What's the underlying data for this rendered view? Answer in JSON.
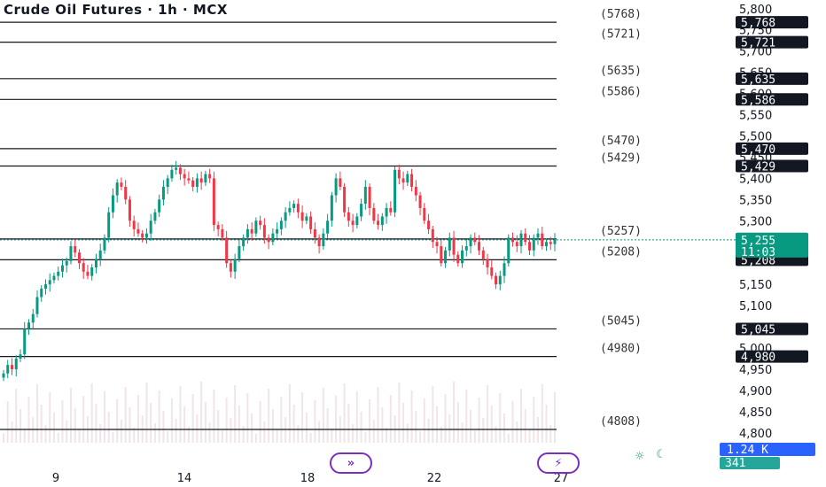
{
  "header": {
    "title": "Crude Oil Futures · 1h · MCX"
  },
  "price_axis": {
    "ticks": [
      "5,800",
      "5,750",
      "5,700",
      "5,650",
      "5,600",
      "5,550",
      "5,500",
      "5,450",
      "5,400",
      "5,350",
      "5,300",
      "5,150",
      "5,100",
      "5,000",
      "4,950",
      "4,900",
      "4,850",
      "4,800"
    ]
  },
  "time_axis": {
    "ticks": [
      "9",
      "14",
      "18",
      "22",
      "27"
    ]
  },
  "levels": [
    {
      "label": "(5768)",
      "tag": "5,768",
      "value": 5768
    },
    {
      "label": "(5721)",
      "tag": "5,721",
      "value": 5721
    },
    {
      "label": "(5635)",
      "tag": "5,635",
      "value": 5635
    },
    {
      "label": "(5586)",
      "tag": "5,586",
      "value": 5586
    },
    {
      "label": "(5470)",
      "tag": "5,470",
      "value": 5470
    },
    {
      "label": "(5429)",
      "tag": "5,429",
      "value": 5429
    },
    {
      "label": "(5257)",
      "tag": "5,257",
      "value": 5257
    },
    {
      "label": "(5208)",
      "tag": "5,208",
      "value": 5208
    },
    {
      "label": "(5045)",
      "tag": "5,045",
      "value": 5045
    },
    {
      "label": "(4980)",
      "tag": "4,980",
      "value": 4980
    },
    {
      "label": "(4808)",
      "tag": "",
      "value": 4808
    }
  ],
  "current_price": {
    "price": "5,255",
    "countdown": "11:03",
    "value": 5255,
    "color": "#089981"
  },
  "volume": {
    "label": "1.24 K",
    "color": "#2962ff"
  },
  "indicator": {
    "label": "341",
    "color": "#26a69a"
  },
  "colors": {
    "up": "#089981",
    "down": "#f23645",
    "level": "#131722",
    "tag_bg": "#131722"
  },
  "chart_data": {
    "type": "candlestick",
    "title": "Crude Oil Futures · 1h · MCX",
    "xlabel": "",
    "ylabel": "",
    "ylim": [
      4785,
      5810
    ],
    "x_ticks": [
      "9",
      "14",
      "18",
      "22",
      "27"
    ],
    "y_scale": "linear",
    "horizontal_levels": [
      5768,
      5721,
      5635,
      5586,
      5470,
      5429,
      5257,
      5208,
      5045,
      4980,
      4808
    ],
    "last_price": 5255,
    "closes": [
      4940,
      4960,
      4950,
      4975,
      4985,
      5045,
      5060,
      5080,
      5120,
      5140,
      5150,
      5160,
      5170,
      5180,
      5195,
      5205,
      5240,
      5225,
      5200,
      5180,
      5170,
      5190,
      5210,
      5230,
      5260,
      5320,
      5360,
      5390,
      5380,
      5350,
      5300,
      5280,
      5270,
      5260,
      5270,
      5300,
      5320,
      5350,
      5380,
      5400,
      5420,
      5425,
      5410,
      5400,
      5395,
      5380,
      5400,
      5390,
      5410,
      5400,
      5290,
      5280,
      5260,
      5200,
      5180,
      5210,
      5240,
      5260,
      5280,
      5270,
      5300,
      5290,
      5260,
      5250,
      5270,
      5280,
      5300,
      5320,
      5330,
      5340,
      5320,
      5300,
      5310,
      5280,
      5260,
      5240,
      5270,
      5300,
      5360,
      5400,
      5380,
      5320,
      5300,
      5290,
      5310,
      5340,
      5380,
      5330,
      5300,
      5290,
      5310,
      5330,
      5320,
      5420,
      5400,
      5390,
      5410,
      5380,
      5360,
      5330,
      5300,
      5280,
      5250,
      5240,
      5200,
      5230,
      5260,
      5220,
      5200,
      5230,
      5240,
      5260,
      5250,
      5230,
      5210,
      5190,
      5170,
      5150,
      5170,
      5200,
      5260,
      5250,
      5240,
      5270,
      5250,
      5230,
      5260,
      5270,
      5240,
      5250,
      5245,
      5255
    ]
  }
}
